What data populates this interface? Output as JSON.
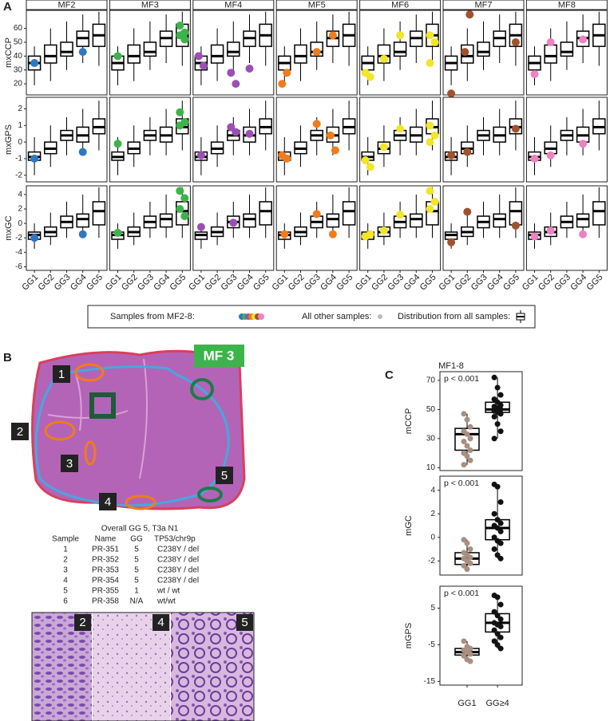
{
  "panel_a": {
    "label": "A",
    "columns": [
      "MF2",
      "MF3",
      "MF4",
      "MF5",
      "MF6",
      "MF7",
      "MF8"
    ],
    "categories": [
      "GG1",
      "GG2",
      "GG3",
      "GG4",
      "GG5"
    ],
    "rows": [
      {
        "label": "mxCCP",
        "ylim": [
          12,
          73
        ],
        "yticks": [
          20,
          30,
          40,
          50,
          60
        ],
        "boxes": [
          [
            19,
            30,
            35,
            40,
            47
          ],
          [
            22,
            35,
            40,
            48,
            60
          ],
          [
            30,
            40,
            43,
            50,
            65
          ],
          [
            35,
            47,
            53,
            58,
            70
          ],
          [
            33,
            47,
            55,
            63,
            72
          ]
        ]
      },
      {
        "label": "mxGPS",
        "ylim": [
          -2.4,
          2.7
        ],
        "yticks": [
          -2,
          -1,
          0,
          1,
          2
        ],
        "boxes": [
          [
            -2,
            -1.1,
            -0.9,
            -0.6,
            0.3
          ],
          [
            -1.5,
            -0.7,
            -0.4,
            0,
            1
          ],
          [
            -0.8,
            0.1,
            0.4,
            0.7,
            1.5
          ],
          [
            -0.8,
            0,
            0.4,
            0.9,
            2
          ],
          [
            -0.5,
            0.5,
            0.9,
            1.4,
            2.5
          ]
        ]
      },
      {
        "label": "mxGC",
        "ylim": [
          -6.5,
          5.2
        ],
        "yticks": [
          -6,
          -4,
          -2,
          0,
          2,
          4
        ],
        "boxes": [
          [
            -3.5,
            -2.2,
            -1.6,
            -1.2,
            0
          ],
          [
            -3,
            -1.8,
            -1.2,
            -0.5,
            1.5
          ],
          [
            -2,
            -0.6,
            0.2,
            1,
            3
          ],
          [
            -2,
            -0.5,
            0.6,
            1.3,
            4
          ],
          [
            -2,
            -0.2,
            1.7,
            3,
            5
          ]
        ]
      }
    ],
    "highlights": [
      {
        "color": "#2e78c2",
        "points": [
          [
            [
              35
            ],
            [],
            [],
            [
              43
            ],
            []
          ],
          [
            [
              -1.0
            ],
            [],
            [],
            [
              -0.6
            ],
            []
          ],
          [
            [
              -2.0
            ],
            [],
            [],
            [
              -1.5
            ],
            []
          ]
        ]
      },
      {
        "color": "#3cb44b",
        "points": [
          [
            [
              40
            ],
            [],
            [],
            [],
            [
              62,
              57,
              55,
              52
            ]
          ],
          [
            [
              -0.1
            ],
            [],
            [],
            [],
            [
              1.8,
              1.2,
              1.0
            ]
          ],
          [
            [
              -1.3
            ],
            [],
            [],
            [],
            [
              4.5,
              3.5,
              2,
              1
            ]
          ]
        ]
      },
      {
        "color": "#9b4fb5",
        "points": [
          [
            [
              40,
              33
            ],
            [],
            [
              28,
              20
            ],
            [
              31
            ],
            []
          ],
          [
            [
              -0.8
            ],
            [],
            [
              0.9,
              0.6
            ],
            [
              0.5
            ],
            []
          ],
          [
            [
              -0.5
            ],
            [],
            [
              0.1
            ],
            [],
            []
          ]
        ]
      },
      {
        "color": "#f07c1c",
        "points": [
          [
            [
              20,
              28
            ],
            [],
            [
              43
            ],
            [
              55
            ],
            []
          ],
          [
            [
              -0.8,
              -1.0
            ],
            [],
            [
              1.1
            ],
            [
              0.4,
              -0.5
            ],
            []
          ],
          [
            [
              -1.5
            ],
            [],
            [
              1.3
            ],
            [
              -1.5
            ],
            []
          ]
        ]
      },
      {
        "color": "#f2e52a",
        "points": [
          [
            [
              28,
              25
            ],
            [
              38
            ],
            [
              55
            ],
            [],
            [
              55,
              50,
              35
            ]
          ],
          [
            [
              -1.1,
              -1.5
            ],
            [
              -0.3
            ],
            [
              0.8
            ],
            [],
            [
              1.0,
              0.4,
              0
            ]
          ],
          [
            [
              -1.8,
              -1.5
            ],
            [
              -1.0
            ],
            [
              1.2
            ],
            [],
            [
              4.5,
              3,
              2
            ]
          ]
        ]
      },
      {
        "color": "#a0522d",
        "points": [
          [
            [
              13
            ],
            [
              43,
              70
            ],
            [],
            [],
            [
              50
            ]
          ],
          [
            [
              -0.8
            ],
            [
              -0.6
            ],
            [],
            [],
            [
              0.8
            ]
          ],
          [
            [
              -2.6
            ],
            [
              1.6
            ],
            [],
            [],
            [
              -0.3
            ]
          ]
        ]
      },
      {
        "color": "#ee82c0",
        "points": [
          [
            [
              27
            ],
            [
              50
            ],
            [],
            [
              52
            ],
            []
          ],
          [
            [
              -1.0
            ],
            [
              -0.8
            ],
            [],
            [
              -0.1
            ],
            []
          ],
          [
            [
              -1.8
            ],
            [
              -1.0
            ],
            [],
            [
              -1.5
            ],
            []
          ]
        ]
      }
    ]
  },
  "legend": {
    "samples": "Samples from MF2-8:",
    "others": "All other samples:",
    "distribution": "Distribution from all samples:"
  },
  "panel_b": {
    "label": "B",
    "image_label": "MF 3",
    "region_labels": [
      "1",
      "2",
      "3",
      "4",
      "5"
    ],
    "table": {
      "caption": "Overall GG 5, T3a N1",
      "header": [
        "Sample",
        "Name",
        "GG",
        "TP53/chr9p"
      ],
      "rows": [
        [
          "1",
          "PR-351",
          "5",
          "C238Y / del"
        ],
        [
          "2",
          "PR-352",
          "5",
          "C238Y / del"
        ],
        [
          "3",
          "PR-353",
          "5",
          "C238Y / del"
        ],
        [
          "4",
          "PR-354",
          "5",
          "C238Y / del"
        ],
        [
          "5",
          "PR-355",
          "1",
          "wt / wt"
        ],
        [
          "6",
          "PR-358",
          "N/A",
          "wt/wt"
        ]
      ]
    },
    "micrograph_labels": [
      "2",
      "4",
      "5"
    ]
  },
  "panel_c": {
    "label": "C",
    "title": "MF1-8",
    "categories": [
      "GG1",
      "GG≥4"
    ],
    "colors": [
      "#a88f7f",
      "#111111"
    ],
    "plots": [
      {
        "label": "mCCP",
        "annotation": "p < 0.001",
        "ylim": [
          8,
          76
        ],
        "yticks": [
          10,
          30,
          50,
          70
        ],
        "boxes": [
          [
            12,
            22,
            33,
            37,
            47
          ],
          [
            30,
            48,
            50,
            55,
            72
          ]
        ],
        "points": [
          [
            47,
            43,
            38,
            35,
            33,
            30,
            28,
            25,
            22,
            20,
            18,
            15,
            12
          ],
          [
            72,
            65,
            60,
            57,
            55,
            53,
            52,
            51,
            50,
            49,
            48,
            47,
            45,
            40,
            35,
            30
          ]
        ]
      },
      {
        "label": "mGC",
        "annotation": "p < 0.001",
        "ylim": [
          -3.2,
          5.2
        ],
        "yticks": [
          -2,
          0,
          2,
          4
        ],
        "boxes": [
          [
            -2.7,
            -2.3,
            -1.8,
            -1.3,
            -0.2
          ],
          [
            -1.8,
            -0.2,
            0.8,
            1.5,
            4.5
          ]
        ],
        "points": [
          [
            -0.2,
            -0.5,
            -1.0,
            -1.3,
            -1.5,
            -1.7,
            -1.8,
            -2.0,
            -2.2,
            -2.4,
            -2.7
          ],
          [
            4.5,
            4.3,
            3.0,
            2.0,
            1.5,
            1.2,
            1.0,
            0.8,
            0.5,
            0,
            -0.3,
            -0.5,
            -1.0,
            -1.5,
            -1.8
          ]
        ]
      },
      {
        "label": "mGPS",
        "annotation": "p < 0.001",
        "ylim": [
          -16,
          11
        ],
        "yticks": [
          -15,
          -5,
          5
        ],
        "boxes": [
          [
            -9.5,
            -7.8,
            -7,
            -6,
            -4
          ],
          [
            -6,
            -1.5,
            1,
            3.5,
            8.5
          ]
        ],
        "points": [
          [
            -4,
            -5.5,
            -6,
            -6.5,
            -7,
            -7.5,
            -8,
            -9,
            -9.5
          ],
          [
            8.5,
            8,
            6,
            4,
            3,
            2,
            1,
            0.5,
            0,
            -1,
            -2,
            -3,
            -4,
            -5,
            -6
          ]
        ]
      }
    ]
  }
}
